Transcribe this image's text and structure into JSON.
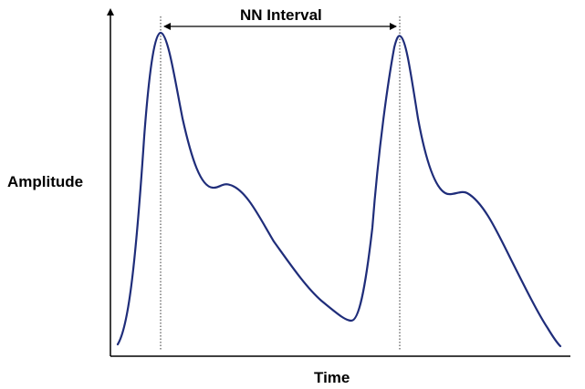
{
  "diagram": {
    "interval_label": "NN Interval",
    "x_axis_label": "Time",
    "y_axis_label": "Amplitude",
    "colors": {
      "waveform": "#1f2d7a",
      "axes": "#000000",
      "guide_lines": "#333333"
    }
  }
}
